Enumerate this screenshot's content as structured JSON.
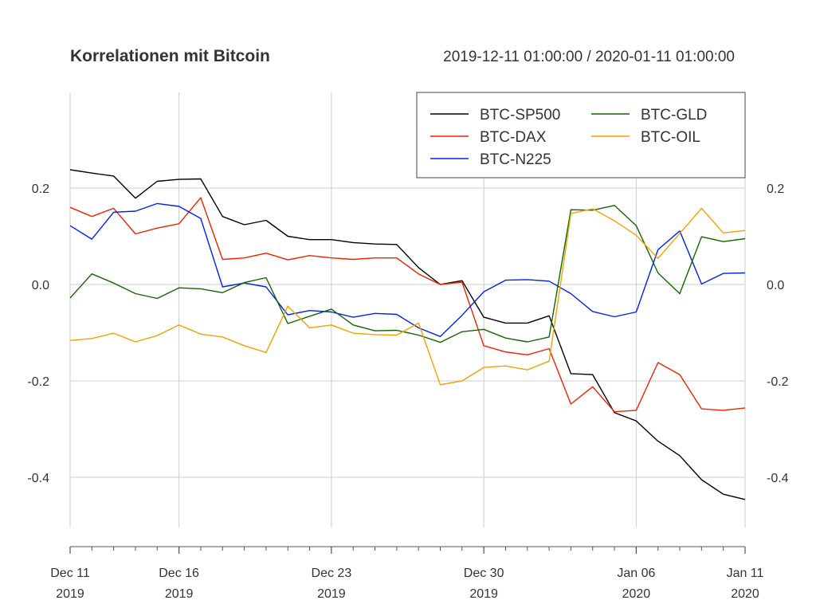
{
  "chart_data": {
    "type": "line",
    "title": "Korrelationen mit Bitcoin",
    "subtitle": "2019-12-11 01:00:00 / 2020-01-11 01:00:00",
    "xlabel": "",
    "ylabel": "",
    "ylim": [
      -0.5,
      0.4
    ],
    "xlim": [
      "2019-12-11",
      "2020-01-11"
    ],
    "yticks": [
      -0.4,
      -0.2,
      0.0,
      0.2
    ],
    "ytick_labels": [
      "-0.4",
      "-0.2",
      "0.0",
      "0.2"
    ],
    "xticks": [
      {
        "date": "2019-12-11",
        "line1": "Dec 11",
        "line2": "2019"
      },
      {
        "date": "2019-12-16",
        "line1": "Dec 16",
        "line2": "2019"
      },
      {
        "date": "2019-12-23",
        "line1": "Dec 23",
        "line2": "2019"
      },
      {
        "date": "2019-12-30",
        "line1": "Dec 30",
        "line2": "2019"
      },
      {
        "date": "2020-01-06",
        "line1": "Jan 06",
        "line2": "2020"
      },
      {
        "date": "2020-01-11",
        "line1": "Jan 11",
        "line2": "2020"
      }
    ],
    "grid": true,
    "legend_position": "top-right",
    "x": [
      "2019-12-11",
      "2019-12-12",
      "2019-12-13",
      "2019-12-14",
      "2019-12-15",
      "2019-12-16",
      "2019-12-17",
      "2019-12-18",
      "2019-12-19",
      "2019-12-20",
      "2019-12-21",
      "2019-12-22",
      "2019-12-23",
      "2019-12-24",
      "2019-12-25",
      "2019-12-26",
      "2019-12-27",
      "2019-12-28",
      "2019-12-29",
      "2019-12-30",
      "2019-12-31",
      "2020-01-01",
      "2020-01-02",
      "2020-01-03",
      "2020-01-04",
      "2020-01-05",
      "2020-01-06",
      "2020-01-07",
      "2020-01-08",
      "2020-01-09",
      "2020-01-10",
      "2020-01-11"
    ],
    "series": [
      {
        "name": "BTC-SP500",
        "color": "#000000",
        "values": [
          0.238,
          0.231,
          0.225,
          0.179,
          0.214,
          0.218,
          0.219,
          0.141,
          0.124,
          0.133,
          0.1,
          0.093,
          0.093,
          0.087,
          0.084,
          0.083,
          0.035,
          0.0,
          0.008,
          -0.068,
          -0.08,
          -0.08,
          -0.065,
          -0.185,
          -0.187,
          -0.266,
          -0.283,
          -0.325,
          -0.355,
          -0.405,
          -0.435,
          -0.446
        ]
      },
      {
        "name": "BTC-DAX",
        "color": "#ee2200",
        "values": [
          0.16,
          0.141,
          0.158,
          0.105,
          0.117,
          0.126,
          0.18,
          0.052,
          0.055,
          0.065,
          0.051,
          0.06,
          0.055,
          0.052,
          0.055,
          0.055,
          0.022,
          0.0,
          0.005,
          -0.127,
          -0.14,
          -0.146,
          -0.133,
          -0.248,
          -0.212,
          -0.264,
          -0.261,
          -0.162,
          -0.187,
          -0.258,
          -0.261,
          -0.256
        ]
      },
      {
        "name": "BTC-N225",
        "color": "#0022ee",
        "values": [
          0.122,
          0.094,
          0.15,
          0.152,
          0.168,
          0.162,
          0.137,
          -0.005,
          0.003,
          -0.005,
          -0.063,
          -0.054,
          -0.057,
          -0.068,
          -0.06,
          -0.062,
          -0.09,
          -0.108,
          -0.064,
          -0.015,
          0.009,
          0.01,
          0.007,
          -0.019,
          -0.056,
          -0.067,
          -0.057,
          0.072,
          0.111,
          0.001,
          0.023,
          0.024
        ]
      },
      {
        "name": "BTC-GLD",
        "color": "#116600",
        "values": [
          -0.028,
          0.022,
          0.003,
          -0.019,
          -0.029,
          -0.007,
          -0.009,
          -0.017,
          0.004,
          0.014,
          -0.081,
          -0.066,
          -0.051,
          -0.084,
          -0.096,
          -0.095,
          -0.105,
          -0.12,
          -0.098,
          -0.093,
          -0.111,
          -0.119,
          -0.109,
          0.155,
          0.154,
          0.164,
          0.122,
          0.024,
          -0.019,
          0.099,
          0.089,
          0.095
        ]
      },
      {
        "name": "BTC-OIL",
        "color": "#f5a000",
        "values": [
          -0.116,
          -0.112,
          -0.101,
          -0.119,
          -0.106,
          -0.084,
          -0.103,
          -0.109,
          -0.127,
          -0.141,
          -0.045,
          -0.09,
          -0.084,
          -0.101,
          -0.104,
          -0.105,
          -0.08,
          -0.208,
          -0.2,
          -0.172,
          -0.169,
          -0.177,
          -0.159,
          0.147,
          0.157,
          0.132,
          0.102,
          0.054,
          0.106,
          0.158,
          0.107,
          0.112
        ]
      }
    ]
  }
}
